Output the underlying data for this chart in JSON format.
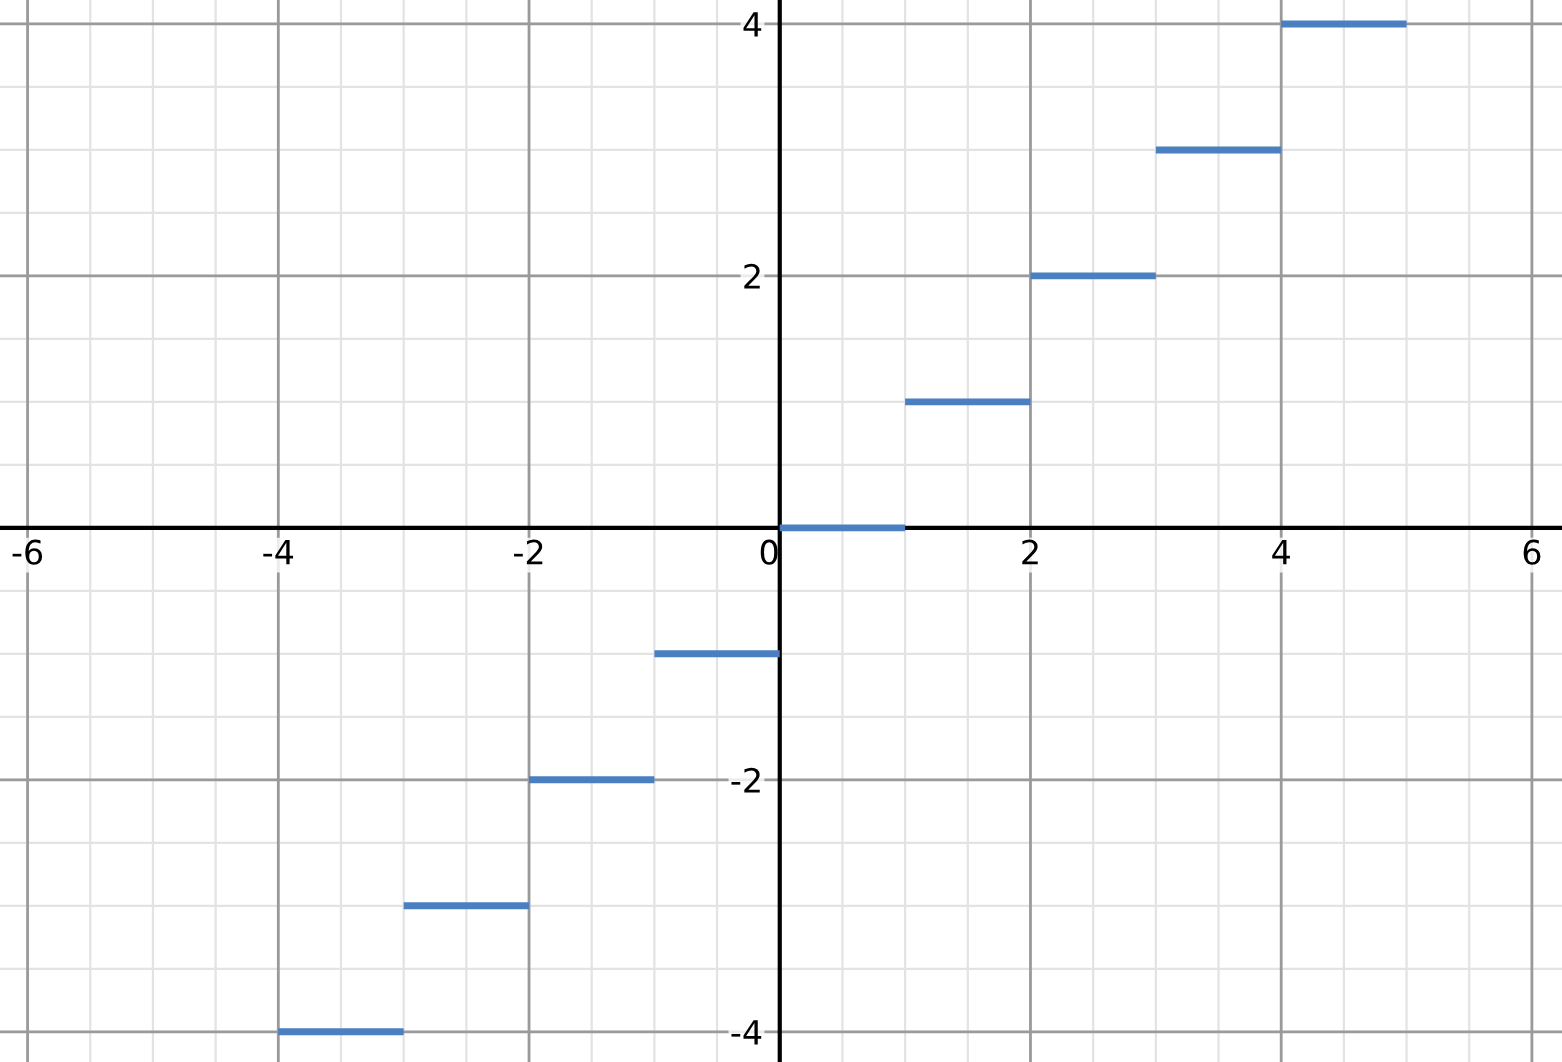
{
  "chart_data": {
    "type": "line",
    "series": [
      {
        "color": "#4a7fc1",
        "x": [
          -4,
          -3
        ],
        "values": [
          -4,
          -4
        ]
      },
      {
        "color": "#4a7fc1",
        "x": [
          -3,
          -2
        ],
        "values": [
          -3,
          -3
        ]
      },
      {
        "color": "#4a7fc1",
        "x": [
          -2,
          -1
        ],
        "values": [
          -2,
          -2
        ]
      },
      {
        "color": "#4a7fc1",
        "x": [
          -1,
          0
        ],
        "values": [
          -1,
          -1
        ]
      },
      {
        "color": "#4a7fc1",
        "x": [
          0,
          1
        ],
        "values": [
          0,
          0
        ]
      },
      {
        "color": "#4a7fc1",
        "x": [
          1,
          2
        ],
        "values": [
          1,
          1
        ]
      },
      {
        "color": "#4a7fc1",
        "x": [
          2,
          3
        ],
        "values": [
          2,
          2
        ]
      },
      {
        "color": "#4a7fc1",
        "x": [
          3,
          4
        ],
        "values": [
          3,
          3
        ]
      },
      {
        "color": "#4a7fc1",
        "x": [
          4,
          5
        ],
        "values": [
          4,
          4
        ]
      }
    ],
    "xlim": [
      -6.22,
      6.24
    ],
    "ylim": [
      -4.24,
      4.19
    ],
    "xticks": [
      -6,
      -4,
      -2,
      0,
      2,
      4,
      6
    ],
    "yticks": [
      -4,
      -2,
      {
        "value": 0,
        "label": null
      },
      2,
      4
    ],
    "grid": true,
    "marker": "none",
    "line_style": "solid"
  }
}
